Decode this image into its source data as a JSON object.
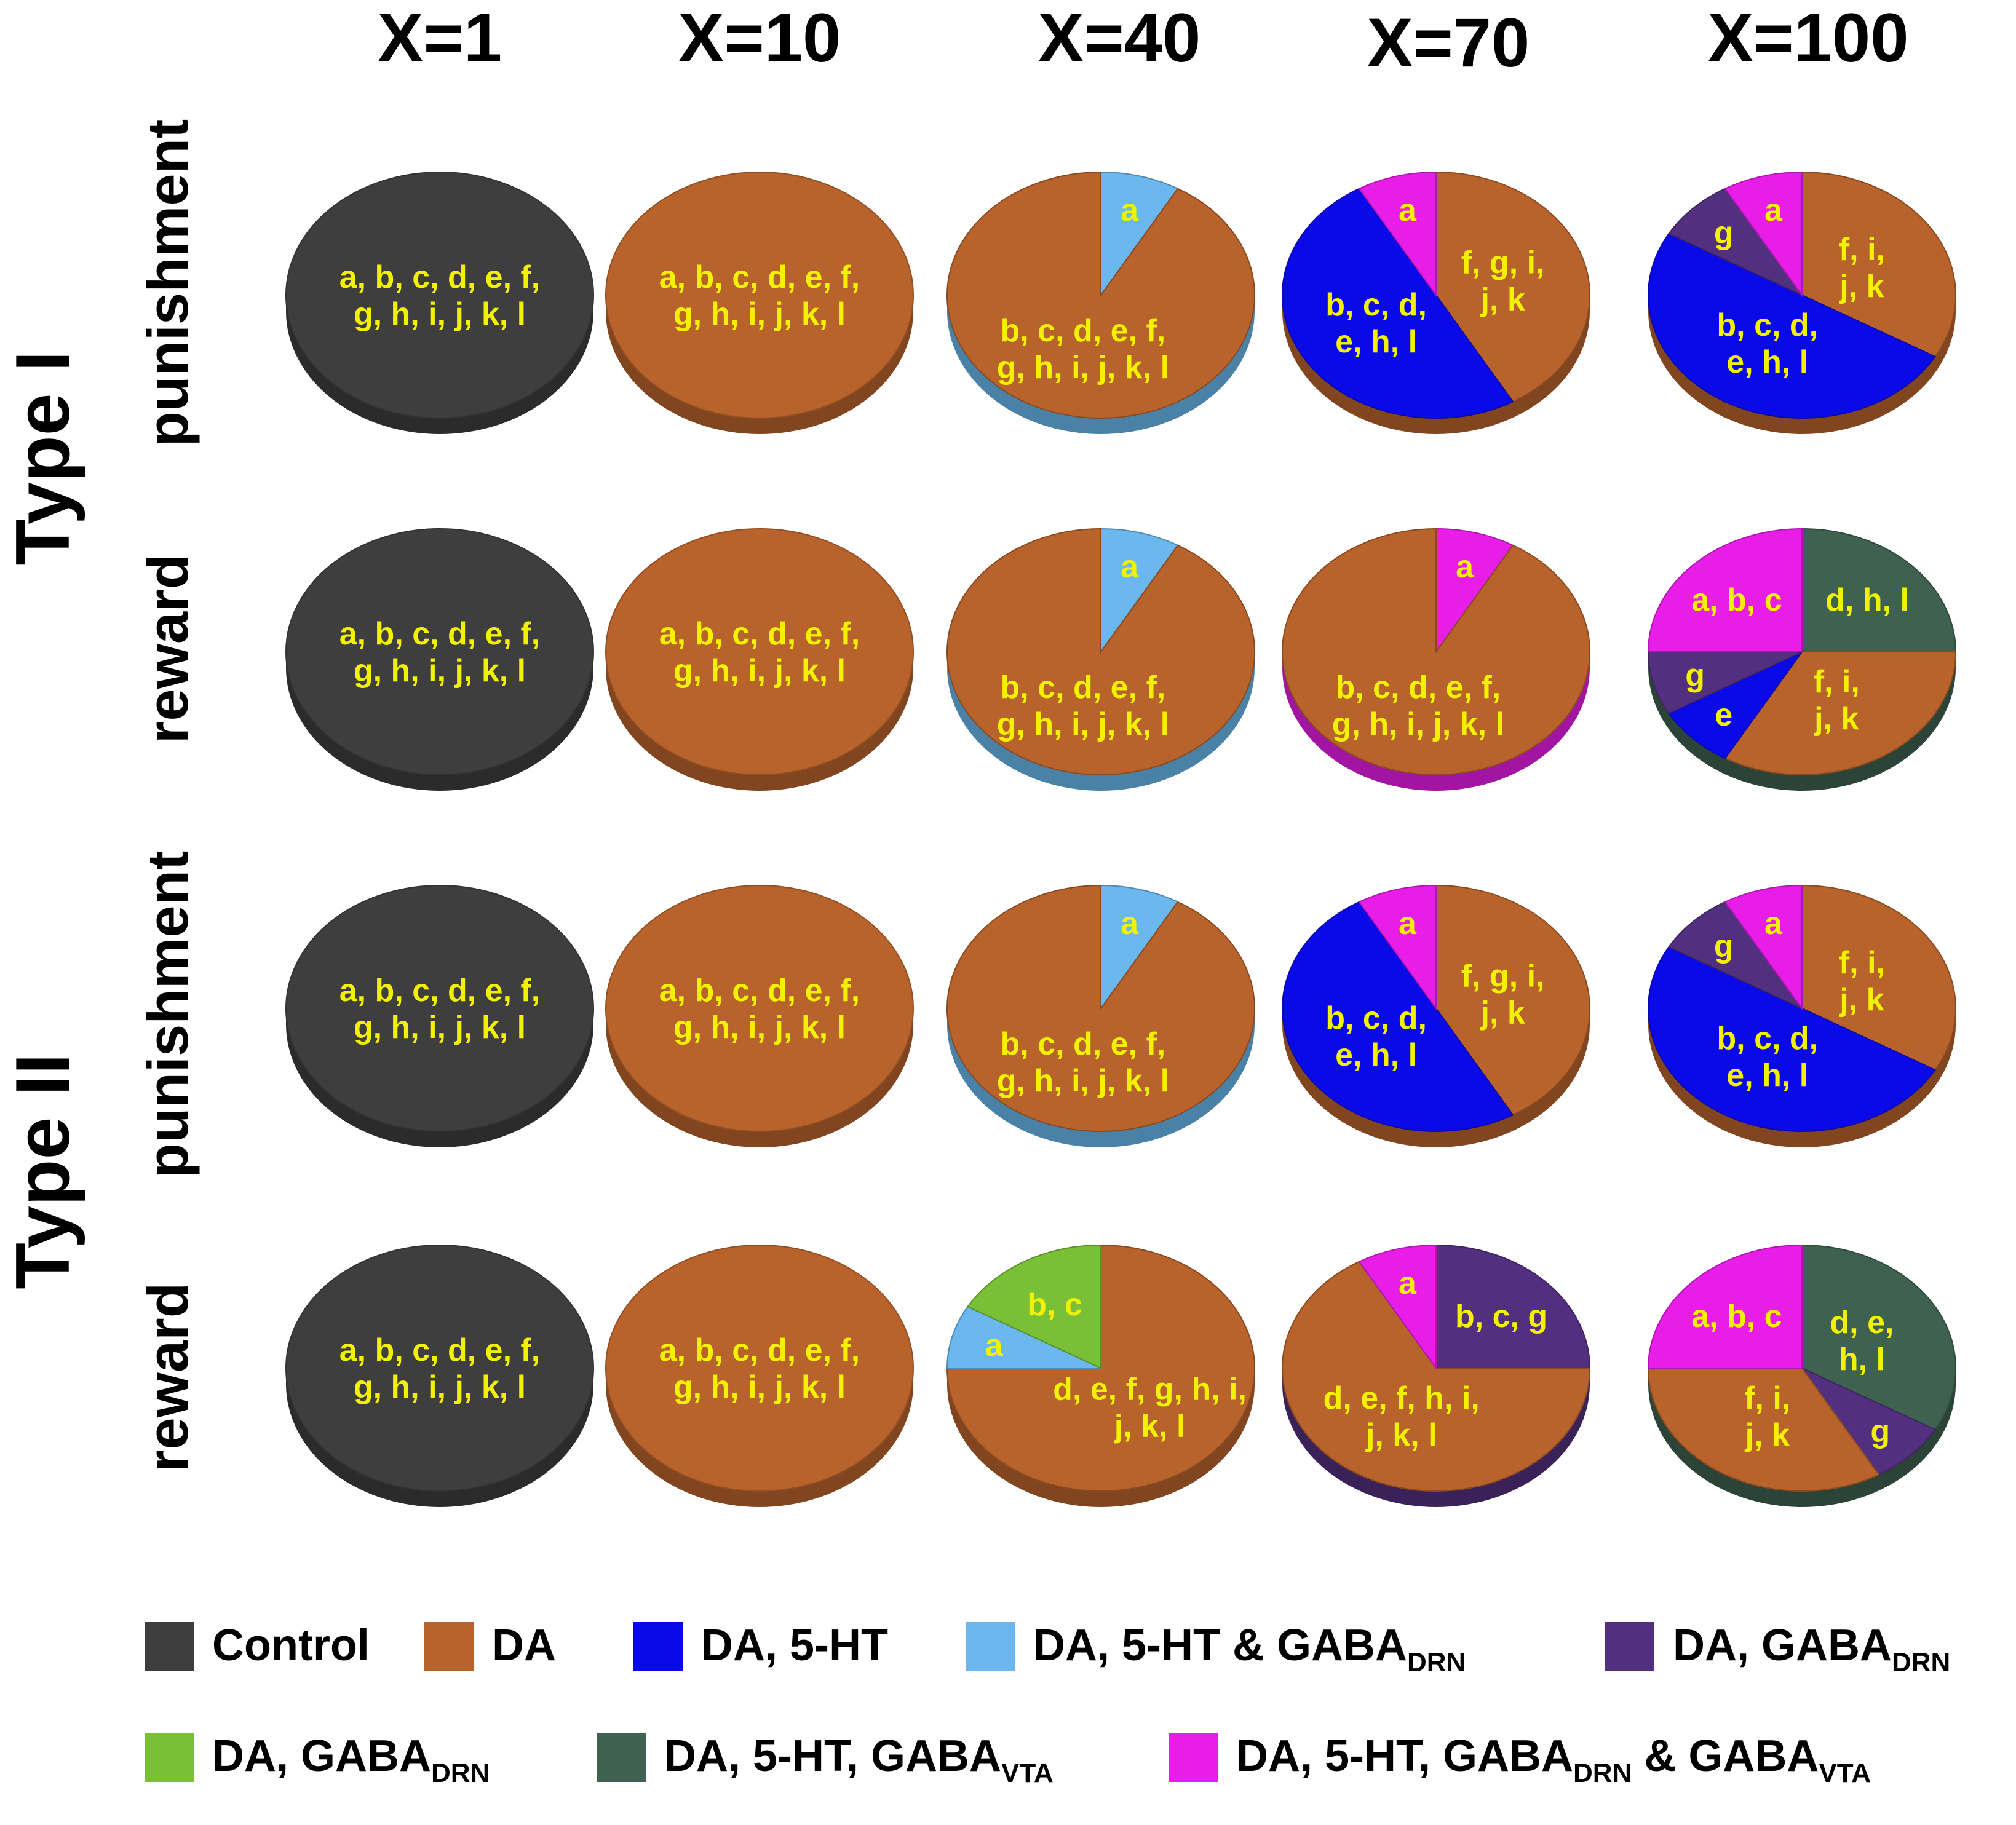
{
  "chart_data": {
    "type": "pie",
    "title": "",
    "columns": [
      "X=1",
      "X=10",
      "X=40",
      "X=70",
      "X=100"
    ],
    "rows": [
      {
        "type": "Type I",
        "condition": "punishment"
      },
      {
        "type": "Type I",
        "condition": "reward"
      },
      {
        "type": "Type II",
        "condition": "punishment"
      },
      {
        "type": "Type II",
        "condition": "reward"
      }
    ],
    "groups": [
      "Type I",
      "Type II"
    ],
    "categories": [
      {
        "key": "control",
        "name": "Control",
        "sub": "",
        "tail": "",
        "color": "#3e3e3e"
      },
      {
        "key": "da",
        "name": "DA",
        "sub": "",
        "tail": "",
        "color": "#b8622c"
      },
      {
        "key": "da5ht",
        "name": "DA, 5-HT",
        "sub": "",
        "tail": "",
        "color": "#0a0ae8"
      },
      {
        "key": "da5htdrn",
        "name": "DA, 5-HT & GABA",
        "sub": "DRN",
        "tail": "",
        "color": "#6ab8ee"
      },
      {
        "key": "dadrn",
        "name": "DA, GABA",
        "sub": "DRN",
        "tail": "",
        "color": "#53307f"
      },
      {
        "key": "dadrn2",
        "name": "DA, GABA",
        "sub": "DRN",
        "tail": "",
        "color": "#7ac036"
      },
      {
        "key": "da5htvta",
        "name": "DA, 5-HT, GABA",
        "sub": "VTA",
        "tail": "",
        "color": "#3f6150"
      },
      {
        "key": "daall",
        "name": "DA, 5-HT, GABA",
        "sub": "DRN",
        "tail": " & GABA",
        "sub2": "VTA",
        "color": "#e81ee8"
      }
    ],
    "pies": [
      [
        [
          {
            "cat": "control",
            "items": 12,
            "label": [
              "a, b, c, d, e, f,",
              "g, h, i, j, k, l"
            ]
          }
        ],
        [
          {
            "cat": "da",
            "items": 12,
            "label": [
              "a, b, c, d, e, f,",
              "g, h, i, j, k, l"
            ]
          }
        ],
        [
          {
            "cat": "da5htdrn",
            "items": 1,
            "label": [
              "a"
            ]
          },
          {
            "cat": "da",
            "items": 11,
            "label": [
              "b, c, d, e, f,",
              "g, h, i, j, k, l"
            ]
          }
        ],
        [
          {
            "cat": "da",
            "items": 5,
            "label": [
              "f, g, i,",
              "j, k"
            ]
          },
          {
            "cat": "da5ht",
            "items": 6,
            "label": [
              "b, c, d,",
              "e, h, l"
            ]
          },
          {
            "cat": "daall",
            "items": 1,
            "label": [
              "a"
            ]
          }
        ],
        [
          {
            "cat": "da",
            "items": 4,
            "label": [
              "f, i,",
              "j, k"
            ]
          },
          {
            "cat": "da5ht",
            "items": 6,
            "label": [
              "b, c, d,",
              "e, h, l"
            ]
          },
          {
            "cat": "dadrn",
            "items": 1,
            "label": [
              "g"
            ]
          },
          {
            "cat": "daall",
            "items": 1,
            "label": [
              "a"
            ]
          }
        ]
      ],
      [
        [
          {
            "cat": "control",
            "items": 12,
            "label": [
              "a, b, c, d, e, f,",
              "g, h, i, j, k, l"
            ]
          }
        ],
        [
          {
            "cat": "da",
            "items": 12,
            "label": [
              "a, b, c, d, e, f,",
              "g, h, i, j, k, l"
            ]
          }
        ],
        [
          {
            "cat": "da5htdrn",
            "items": 1,
            "label": [
              "a"
            ]
          },
          {
            "cat": "da",
            "items": 11,
            "label": [
              "b, c, d, e, f,",
              "g, h, i, j, k, l"
            ]
          }
        ],
        [
          {
            "cat": "daall",
            "items": 1,
            "label": [
              "a"
            ]
          },
          {
            "cat": "da",
            "items": 11,
            "label": [
              "b, c, d, e, f,",
              "g, h, i, j, k, l"
            ]
          }
        ],
        [
          {
            "cat": "da5htvta",
            "items": 3,
            "label": [
              "d, h, l"
            ]
          },
          {
            "cat": "da",
            "items": 4,
            "label": [
              "f, i,",
              "j, k"
            ]
          },
          {
            "cat": "da5ht",
            "items": 1,
            "label": [
              "e"
            ]
          },
          {
            "cat": "dadrn",
            "items": 1,
            "label": [
              "g"
            ]
          },
          {
            "cat": "daall",
            "items": 3,
            "label": [
              "a, b, c"
            ]
          }
        ]
      ],
      [
        [
          {
            "cat": "control",
            "items": 12,
            "label": [
              "a, b, c, d, e, f,",
              "g, h, i, j, k, l"
            ]
          }
        ],
        [
          {
            "cat": "da",
            "items": 12,
            "label": [
              "a, b, c, d, e, f,",
              "g, h, i, j, k, l"
            ]
          }
        ],
        [
          {
            "cat": "da5htdrn",
            "items": 1,
            "label": [
              "a"
            ]
          },
          {
            "cat": "da",
            "items": 11,
            "label": [
              "b, c, d, e, f,",
              "g, h, i, j, k, l"
            ]
          }
        ],
        [
          {
            "cat": "da",
            "items": 5,
            "label": [
              "f, g, i,",
              "j, k"
            ]
          },
          {
            "cat": "da5ht",
            "items": 6,
            "label": [
              "b, c, d,",
              "e, h, l"
            ]
          },
          {
            "cat": "daall",
            "items": 1,
            "label": [
              "a"
            ]
          }
        ],
        [
          {
            "cat": "da",
            "items": 4,
            "label": [
              "f, i,",
              "j, k"
            ]
          },
          {
            "cat": "da5ht",
            "items": 6,
            "label": [
              "b, c, d,",
              "e, h, l"
            ]
          },
          {
            "cat": "dadrn",
            "items": 1,
            "label": [
              "g"
            ]
          },
          {
            "cat": "daall",
            "items": 1,
            "label": [
              "a"
            ]
          }
        ]
      ],
      [
        [
          {
            "cat": "control",
            "items": 12,
            "label": [
              "a, b, c, d, e, f,",
              "g, h, i, j, k, l"
            ]
          }
        ],
        [
          {
            "cat": "da",
            "items": 12,
            "label": [
              "a, b, c, d, e, f,",
              "g, h, i, j, k, l"
            ]
          }
        ],
        [
          {
            "cat": "da",
            "items": 9,
            "label": [
              "d, e, f, g, h, i,",
              "j, k, l"
            ]
          },
          {
            "cat": "da5htdrn",
            "items": 1,
            "label": [
              "a"
            ]
          },
          {
            "cat": "dadrn2",
            "items": 2,
            "label": [
              "b, c"
            ]
          }
        ],
        [
          {
            "cat": "dadrn",
            "items": 3,
            "label": [
              "b, c, g"
            ]
          },
          {
            "cat": "da",
            "items": 8,
            "label": [
              "d, e, f, h, i,",
              "j, k, l"
            ]
          },
          {
            "cat": "daall",
            "items": 1,
            "label": [
              "a"
            ]
          }
        ],
        [
          {
            "cat": "da5htvta",
            "items": 4,
            "label": [
              "d, e,",
              "h, l"
            ]
          },
          {
            "cat": "dadrn",
            "items": 1,
            "label": [
              "g"
            ]
          },
          {
            "cat": "da",
            "items": 4,
            "label": [
              "f, i,",
              "j, k"
            ]
          },
          {
            "cat": "daall",
            "items": 3,
            "label": [
              "a, b, c"
            ]
          }
        ]
      ]
    ]
  }
}
